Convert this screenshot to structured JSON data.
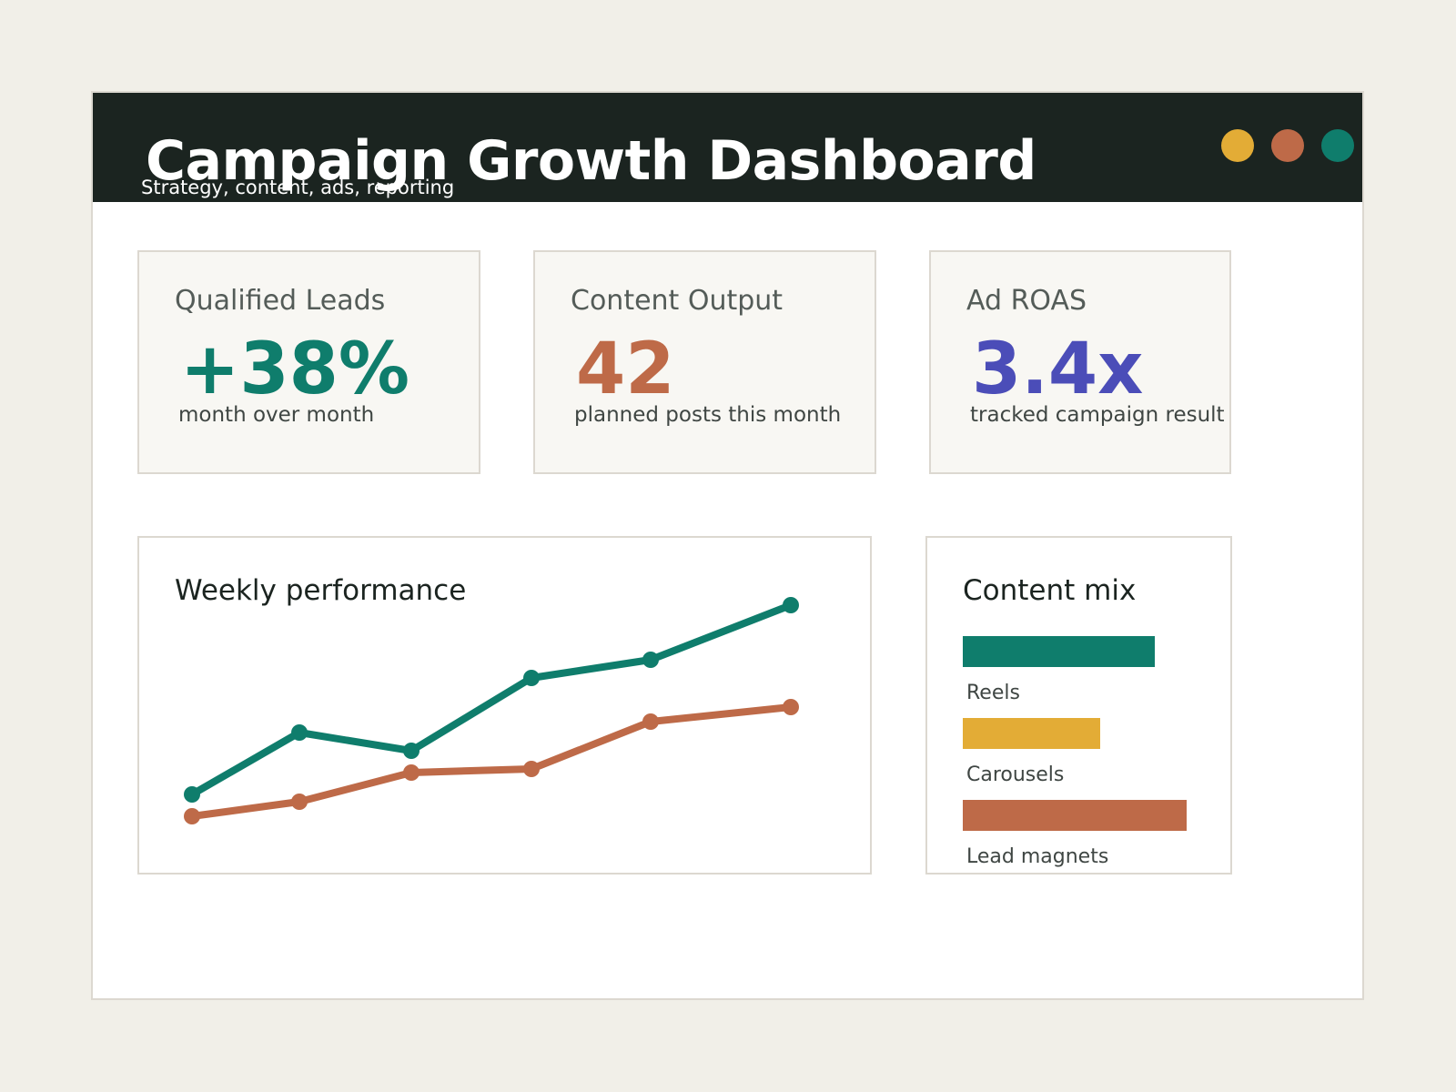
{
  "colors": {
    "teal": "#0f7d6c",
    "orange": "#be6a48",
    "gold": "#e3ac36",
    "indigo": "#4b4db8",
    "dark": "#1b2420"
  },
  "window": {
    "title": "Campaign Growth Dashboard",
    "subtitle": "Strategy, content, ads, reporting",
    "controls": [
      "gold-dot",
      "orange-dot",
      "teal-dot"
    ]
  },
  "kpis": [
    {
      "label": "Qualified Leads",
      "value": "+38%",
      "note": "month over month",
      "color": "#0f7d6c"
    },
    {
      "label": "Content Output",
      "value": "42",
      "note": "planned posts this month",
      "color": "#be6a48"
    },
    {
      "label": "Ad ROAS",
      "value": "3.4x",
      "note": "tracked campaign result",
      "color": "#4b4db8"
    }
  ],
  "weekly": {
    "title": "Weekly performance"
  },
  "mix": {
    "title": "Content mix",
    "items": [
      {
        "label": "Reels",
        "value": 6,
        "color": "#0f7d6c"
      },
      {
        "label": "Carousels",
        "value": 4.3,
        "color": "#e3ac36"
      },
      {
        "label": "Lead magnets",
        "value": 7,
        "color": "#be6a48"
      }
    ]
  },
  "chart_data": {
    "type": "line",
    "title": "Weekly performance",
    "x": [
      1,
      2,
      3,
      4,
      5,
      6
    ],
    "series": [
      {
        "values": [
          12,
          29,
          24,
          44,
          49,
          64
        ],
        "color": "#0f7d6c"
      },
      {
        "values": [
          6,
          10,
          18,
          19,
          32,
          36
        ],
        "color": "#be6a48"
      }
    ],
    "ylim": [
      0,
      70
    ],
    "grid": false,
    "legend": "none"
  }
}
